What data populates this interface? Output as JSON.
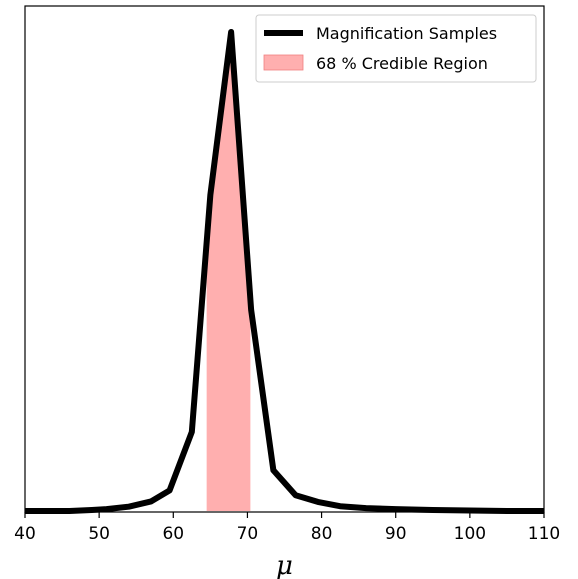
{
  "chart_data": {
    "type": "line",
    "title": "",
    "xlabel": "μ",
    "ylabel": "",
    "xlim": [
      40,
      110
    ],
    "ylim": [
      0,
      1.0
    ],
    "x_ticks": [
      40,
      50,
      60,
      70,
      80,
      90,
      100,
      110
    ],
    "x_tick_labels": [
      "40",
      "50",
      "60",
      "70",
      "80",
      "90",
      "100",
      "110"
    ],
    "y_ticks_visible": false,
    "grid": false,
    "legend_position": "top-right",
    "series": [
      {
        "name": "Magnification Samples",
        "color": "#000000",
        "x": [
          40.0,
          43.0,
          46.0,
          49.0,
          51.0,
          54.0,
          57.0,
          59.5,
          62.5,
          65.0,
          67.8,
          70.5,
          73.5,
          76.5,
          79.5,
          82.5,
          86.0,
          90.0,
          95.0,
          100.0,
          105.0,
          110.0
        ],
        "y": [
          0.0,
          0.0,
          0.0,
          0.002,
          0.004,
          0.009,
          0.02,
          0.043,
          0.165,
          0.66,
          1.0,
          0.42,
          0.085,
          0.033,
          0.019,
          0.01,
          0.006,
          0.004,
          0.002,
          0.001,
          0.0,
          0.0
        ]
      },
      {
        "name": "68 % Credible Region",
        "kind": "band",
        "color": "#ff9b9b",
        "x_start": 64.5,
        "x_end": 70.4
      }
    ]
  }
}
